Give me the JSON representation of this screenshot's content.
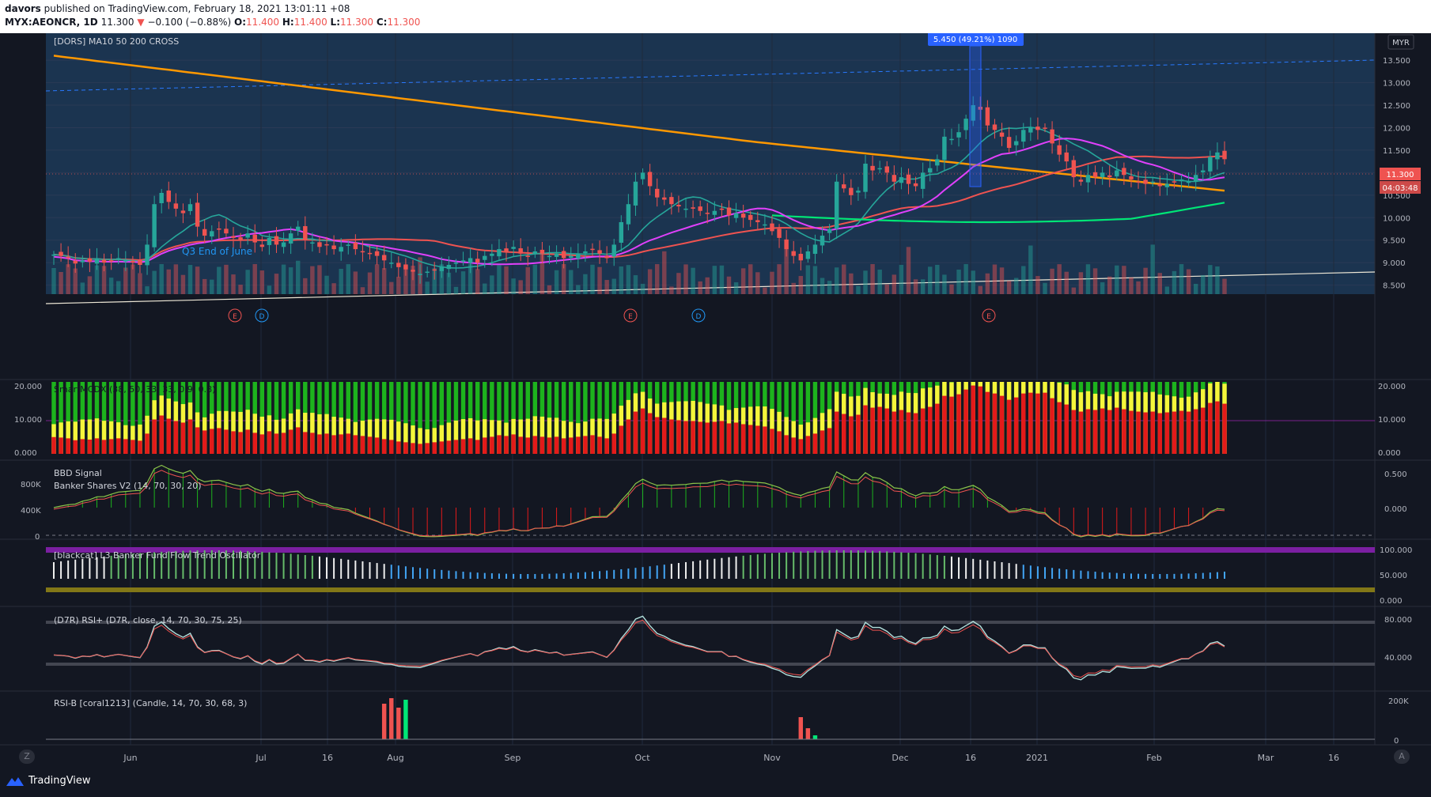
{
  "header": {
    "user": "davors",
    "published": "published on TradingView.com, February 18, 2021 13:01:11 +08",
    "symbol": "MYX:AEONCR, 1D",
    "last": "11.300",
    "change": "−0.100 (−0.88%)",
    "o_label": "O:",
    "o": "11.400",
    "h_label": "H:",
    "h": "11.400",
    "l_label": "L:",
    "l": "11.300",
    "c_label": "C:",
    "c": "11.300"
  },
  "currency": "MYR",
  "price_tag": "11.300",
  "countdown": "04:03:48",
  "measure_label": "5.450 (49.21%) 1090",
  "annotation": "Q3 End of June",
  "event_badges": [
    "E",
    "D",
    "E",
    "D",
    "E"
  ],
  "footer": {
    "brand": "TradingView",
    "left_btn": "Z",
    "right_btn": "A"
  },
  "colors": {
    "up": "#26a69a",
    "down": "#ef5350",
    "ma10": "#26a69a",
    "ma50": "#ef5350",
    "ma200": "#ff9800",
    "ma_green": "#00e676",
    "ma_magenta": "#e040fb",
    "bg": "#131722",
    "panel": "#1e3050"
  },
  "chart_data": {
    "type": "candlestick",
    "title": "[DORS] MA10 50 200 CROSS",
    "x_ticks": [
      "Jun",
      "Jul",
      "16",
      "Aug",
      "Sep",
      "Oct",
      "Nov",
      "Dec",
      "16",
      "2021",
      "Feb",
      "Mar",
      "16"
    ],
    "y_ticks": [
      "13.500",
      "13.000",
      "12.500",
      "12.000",
      "11.500",
      "11.000",
      "10.500",
      "10.000",
      "9.500",
      "9.000",
      "8.500"
    ],
    "ylim": [
      8.3,
      14.1
    ],
    "closes": [
      9.18,
      9.15,
      9.1,
      8.98,
      9.05,
      9.02,
      9.1,
      9.0,
      9.05,
      9.1,
      9.05,
      9.0,
      8.95,
      9.4,
      10.3,
      10.55,
      10.35,
      10.2,
      10.1,
      10.3,
      9.8,
      9.6,
      9.7,
      9.75,
      9.65,
      9.55,
      9.5,
      9.65,
      9.45,
      9.35,
      9.55,
      9.4,
      9.45,
      9.65,
      9.8,
      9.5,
      9.45,
      9.35,
      9.4,
      9.3,
      9.35,
      9.4,
      9.3,
      9.25,
      9.2,
      9.15,
      9.05,
      9.0,
      8.9,
      8.85,
      8.8,
      8.75,
      8.8,
      8.85,
      8.9,
      8.95,
      9.0,
      9.05,
      9.1,
      9.0,
      9.15,
      9.2,
      9.3,
      9.25,
      9.35,
      9.2,
      9.15,
      9.25,
      9.2,
      9.15,
      9.2,
      9.1,
      9.15,
      9.2,
      9.25,
      9.3,
      9.2,
      9.1,
      9.4,
      9.9,
      10.3,
      10.8,
      11.0,
      10.7,
      10.45,
      10.4,
      10.3,
      10.25,
      10.2,
      10.2,
      10.15,
      10.1,
      10.15,
      10.2,
      10.05,
      10.1,
      10.0,
      9.95,
      9.9,
      9.85,
      9.7,
      9.55,
      9.3,
      9.15,
      9.05,
      9.25,
      9.4,
      9.6,
      9.75,
      10.8,
      10.65,
      10.5,
      10.6,
      11.2,
      11.05,
      11.1,
      11.0,
      10.8,
      10.9,
      10.75,
      10.7,
      11.0,
      11.1,
      11.3,
      11.8,
      11.75,
      11.9,
      12.2,
      12.5,
      12.4,
      12.05,
      11.95,
      11.8,
      11.55,
      11.7,
      11.95,
      12.0,
      11.95,
      12.0,
      11.65,
      11.4,
      11.25,
      10.9,
      10.8,
      10.95,
      10.9,
      11.0,
      10.9,
      11.05,
      10.95,
      10.85,
      10.8,
      10.75,
      10.8,
      10.7,
      10.75,
      10.8,
      10.85,
      10.8,
      10.95,
      11.05,
      11.35,
      11.45,
      11.3
    ]
  },
  "panels": {
    "smc": {
      "title": "SmartMCDX (38, 50, 33, 33, 0.9, 0.8)",
      "ticks": [
        "20.000",
        "10.000",
        "0.000"
      ]
    },
    "bbd": {
      "title1": "BBD Signal",
      "title2": "Banker Shares V2 (14, 70, 30, 20)",
      "left_ticks": [
        "800K",
        "400K",
        "0"
      ],
      "right_ticks": [
        "0.500",
        "0.000"
      ]
    },
    "osc": {
      "title": "[blackcat] L3 Banker Fund Flow Trend Oscillator",
      "ticks": [
        "100.000",
        "50.000",
        "0.000"
      ]
    },
    "rsi": {
      "title": "(D7R) RSI+ (D7R, close, 14, 70, 30, 75, 25)",
      "ticks": [
        "80.000",
        "40.000"
      ]
    },
    "rsib": {
      "title": "RSI-B [coral1213] (Candle, 14, 70, 30, 68, 3)",
      "ticks": [
        "200K",
        "0"
      ]
    }
  }
}
